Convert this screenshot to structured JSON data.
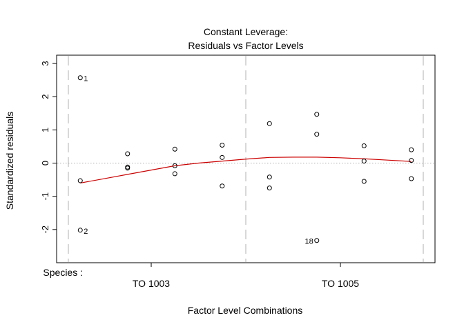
{
  "chart_data": {
    "type": "scatter",
    "title_line1": "Constant Leverage:",
    "title_line2": "Residuals vs Factor Levels",
    "xlabel": "Factor Level Combinations",
    "ylabel": "Standardized residuals",
    "factor_label": "Species :",
    "xlim": [
      0.5,
      8.5
    ],
    "ylim": [
      -3.0,
      3.25
    ],
    "yticks": [
      -2,
      -1,
      0,
      1,
      2,
      3
    ],
    "xticks": [
      {
        "pos": 2.5,
        "label": "TO 1003"
      },
      {
        "pos": 6.5,
        "label": "TO 1005"
      }
    ],
    "group_separators": [
      0.5,
      4.5,
      8.5
    ],
    "zero_line": 0,
    "points": [
      {
        "x": 1,
        "y": 2.57,
        "label": "1"
      },
      {
        "x": 1,
        "y": -0.53
      },
      {
        "x": 1,
        "y": -2.02,
        "label": "2"
      },
      {
        "x": 2,
        "y": 0.28
      },
      {
        "x": 2,
        "y": -0.12
      },
      {
        "x": 2,
        "y": -0.15
      },
      {
        "x": 3,
        "y": 0.42
      },
      {
        "x": 3,
        "y": -0.08
      },
      {
        "x": 3,
        "y": -0.32
      },
      {
        "x": 4,
        "y": 0.54
      },
      {
        "x": 4,
        "y": 0.17
      },
      {
        "x": 4,
        "y": -0.69
      },
      {
        "x": 5,
        "y": 1.19
      },
      {
        "x": 5,
        "y": -0.42
      },
      {
        "x": 5,
        "y": -0.75
      },
      {
        "x": 6,
        "y": 1.47
      },
      {
        "x": 6,
        "y": 0.87
      },
      {
        "x": 6,
        "y": -2.33,
        "label": "18"
      },
      {
        "x": 7,
        "y": 0.52
      },
      {
        "x": 7,
        "y": 0.06
      },
      {
        "x": 7,
        "y": -0.55
      },
      {
        "x": 8,
        "y": 0.4
      },
      {
        "x": 8,
        "y": 0.08
      },
      {
        "x": 8,
        "y": -0.47
      }
    ],
    "smooth_line": {
      "color": "#cc0000",
      "x": [
        1,
        1.5,
        2,
        2.5,
        3,
        3.5,
        4,
        4.5,
        5,
        5.5,
        6,
        6.5,
        7,
        7.5,
        8
      ],
      "y": [
        -0.6,
        -0.47,
        -0.34,
        -0.21,
        -0.08,
        0.0,
        0.06,
        0.12,
        0.17,
        0.18,
        0.18,
        0.16,
        0.13,
        0.09,
        0.05
      ]
    },
    "colors": {
      "points": "#000000",
      "zero_line": "#aaaaaa",
      "separators": "#c8c8c8",
      "axes": "#000000"
    }
  }
}
